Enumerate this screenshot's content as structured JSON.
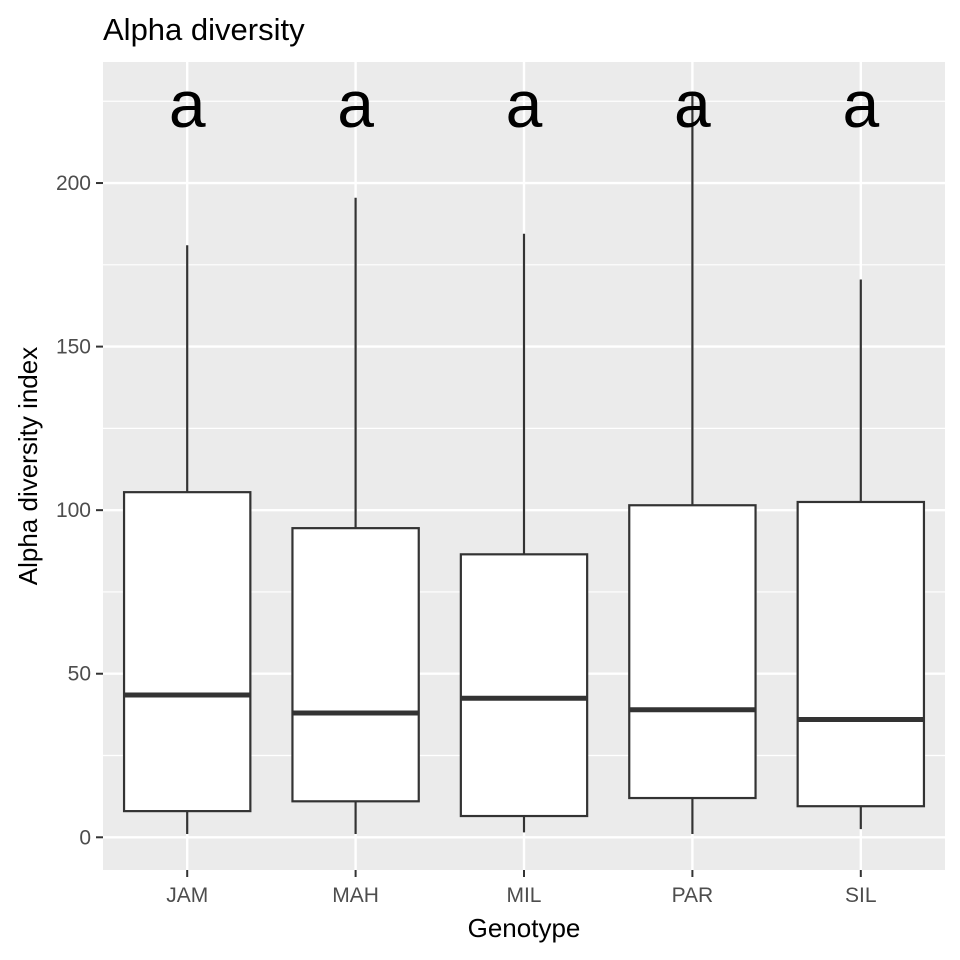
{
  "chart_data": {
    "type": "box",
    "title": "Alpha diversity",
    "xlabel": "Genotype",
    "ylabel": "Alpha diversity index",
    "ylim": [
      -10,
      237
    ],
    "yticks": [
      0,
      50,
      100,
      150,
      200
    ],
    "grid": true,
    "categories": [
      "JAM",
      "MAH",
      "MIL",
      "PAR",
      "SIL"
    ],
    "boxes": [
      {
        "name": "JAM",
        "whisker_low": 1,
        "q1": 8,
        "median": 43.5,
        "q3": 105.5,
        "whisker_high": 181,
        "letter": "a"
      },
      {
        "name": "MAH",
        "whisker_low": 1,
        "q1": 11,
        "median": 38,
        "q3": 94.5,
        "whisker_high": 195.5,
        "letter": "a"
      },
      {
        "name": "MIL",
        "whisker_low": 1.5,
        "q1": 6.5,
        "median": 42.5,
        "q3": 86.5,
        "whisker_high": 184.5,
        "letter": "a"
      },
      {
        "name": "PAR",
        "whisker_low": 1,
        "q1": 12,
        "median": 39,
        "q3": 101.5,
        "whisker_high": 227,
        "letter": "a"
      },
      {
        "name": "SIL",
        "whisker_low": 2.5,
        "q1": 9.5,
        "median": 36,
        "q3": 102.5,
        "whisker_high": 170.5,
        "letter": "a"
      }
    ],
    "colors": {
      "panel": "#ebebeb",
      "grid_major": "#ffffff",
      "box_fill": "#ffffff",
      "box_line": "#333333",
      "tick": "#333333"
    }
  }
}
